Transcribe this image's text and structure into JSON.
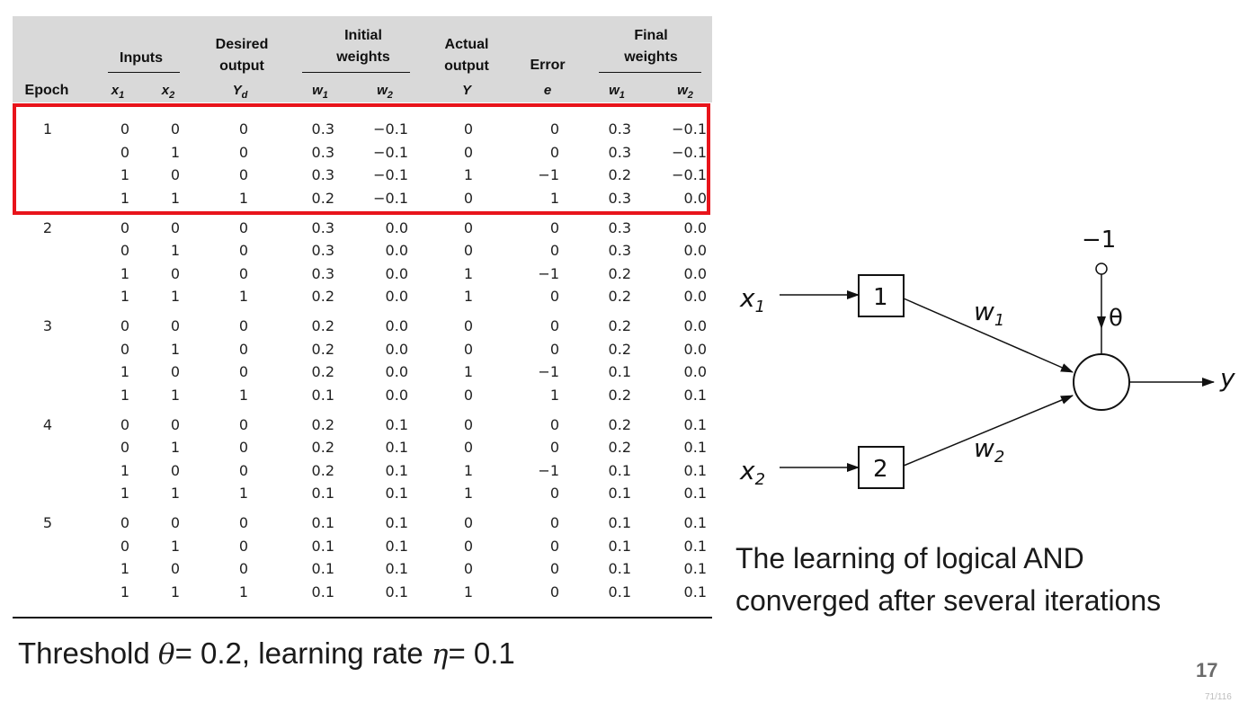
{
  "table": {
    "headers": {
      "epoch": "Epoch",
      "inputs": "Inputs",
      "desired_output_1": "Desired",
      "desired_output_2": "output",
      "initial_weights_1": "Initial",
      "initial_weights_2": "weights",
      "actual_output_1": "Actual",
      "actual_output_2": "output",
      "error": "Error",
      "final_weights_1": "Final",
      "final_weights_2": "weights"
    },
    "subheaders": {
      "x1": "x",
      "x1_sub": "1",
      "x2": "x",
      "x2_sub": "2",
      "yd": "Y",
      "yd_sub": "d",
      "iw1": "w",
      "iw1_sub": "1",
      "iw2": "w",
      "iw2_sub": "2",
      "y": "Y",
      "e": "e",
      "fw1": "w",
      "fw1_sub": "1",
      "fw2": "w",
      "fw2_sub": "2"
    },
    "epochs": [
      {
        "label": "1",
        "rows": [
          [
            "0",
            "0",
            "0",
            "0.3",
            "−0.1",
            "0",
            "0",
            "0.3",
            "−0.1"
          ],
          [
            "0",
            "1",
            "0",
            "0.3",
            "−0.1",
            "0",
            "0",
            "0.3",
            "−0.1"
          ],
          [
            "1",
            "0",
            "0",
            "0.3",
            "−0.1",
            "1",
            "−1",
            "0.2",
            "−0.1"
          ],
          [
            "1",
            "1",
            "1",
            "0.2",
            "−0.1",
            "0",
            "1",
            "0.3",
            "0.0"
          ]
        ]
      },
      {
        "label": "2",
        "rows": [
          [
            "0",
            "0",
            "0",
            "0.3",
            "0.0",
            "0",
            "0",
            "0.3",
            "0.0"
          ],
          [
            "0",
            "1",
            "0",
            "0.3",
            "0.0",
            "0",
            "0",
            "0.3",
            "0.0"
          ],
          [
            "1",
            "0",
            "0",
            "0.3",
            "0.0",
            "1",
            "−1",
            "0.2",
            "0.0"
          ],
          [
            "1",
            "1",
            "1",
            "0.2",
            "0.0",
            "1",
            "0",
            "0.2",
            "0.0"
          ]
        ]
      },
      {
        "label": "3",
        "rows": [
          [
            "0",
            "0",
            "0",
            "0.2",
            "0.0",
            "0",
            "0",
            "0.2",
            "0.0"
          ],
          [
            "0",
            "1",
            "0",
            "0.2",
            "0.0",
            "0",
            "0",
            "0.2",
            "0.0"
          ],
          [
            "1",
            "0",
            "0",
            "0.2",
            "0.0",
            "1",
            "−1",
            "0.1",
            "0.0"
          ],
          [
            "1",
            "1",
            "1",
            "0.1",
            "0.0",
            "0",
            "1",
            "0.2",
            "0.1"
          ]
        ]
      },
      {
        "label": "4",
        "rows": [
          [
            "0",
            "0",
            "0",
            "0.2",
            "0.1",
            "0",
            "0",
            "0.2",
            "0.1"
          ],
          [
            "0",
            "1",
            "0",
            "0.2",
            "0.1",
            "0",
            "0",
            "0.2",
            "0.1"
          ],
          [
            "1",
            "0",
            "0",
            "0.2",
            "0.1",
            "1",
            "−1",
            "0.1",
            "0.1"
          ],
          [
            "1",
            "1",
            "1",
            "0.1",
            "0.1",
            "1",
            "0",
            "0.1",
            "0.1"
          ]
        ]
      },
      {
        "label": "5",
        "rows": [
          [
            "0",
            "0",
            "0",
            "0.1",
            "0.1",
            "0",
            "0",
            "0.1",
            "0.1"
          ],
          [
            "0",
            "1",
            "0",
            "0.1",
            "0.1",
            "0",
            "0",
            "0.1",
            "0.1"
          ],
          [
            "1",
            "0",
            "0",
            "0.1",
            "0.1",
            "0",
            "0",
            "0.1",
            "0.1"
          ],
          [
            "1",
            "1",
            "1",
            "0.1",
            "0.1",
            "1",
            "0",
            "0.1",
            "0.1"
          ]
        ]
      }
    ],
    "highlight_color": "#e8141b"
  },
  "parameters": {
    "prefix": "Threshold ",
    "theta": "θ",
    "theta_value": "= 0.2, learning rate ",
    "eta": "η",
    "eta_value": "= 0.1"
  },
  "diagram": {
    "x1_label": "x",
    "x1_sub": "1",
    "x2_label": "x",
    "x2_sub": "2",
    "node1": "1",
    "node2": "2",
    "w1_label": "w",
    "w1_sub": "1",
    "w2_label": "w",
    "w2_sub": "2",
    "bias_label": "−1",
    "theta_label": "θ",
    "output_label": "y"
  },
  "caption": {
    "line1": "The learning of logical AND",
    "line2": "converged after several iterations"
  },
  "page_number": "17",
  "page_footer": "71/116"
}
